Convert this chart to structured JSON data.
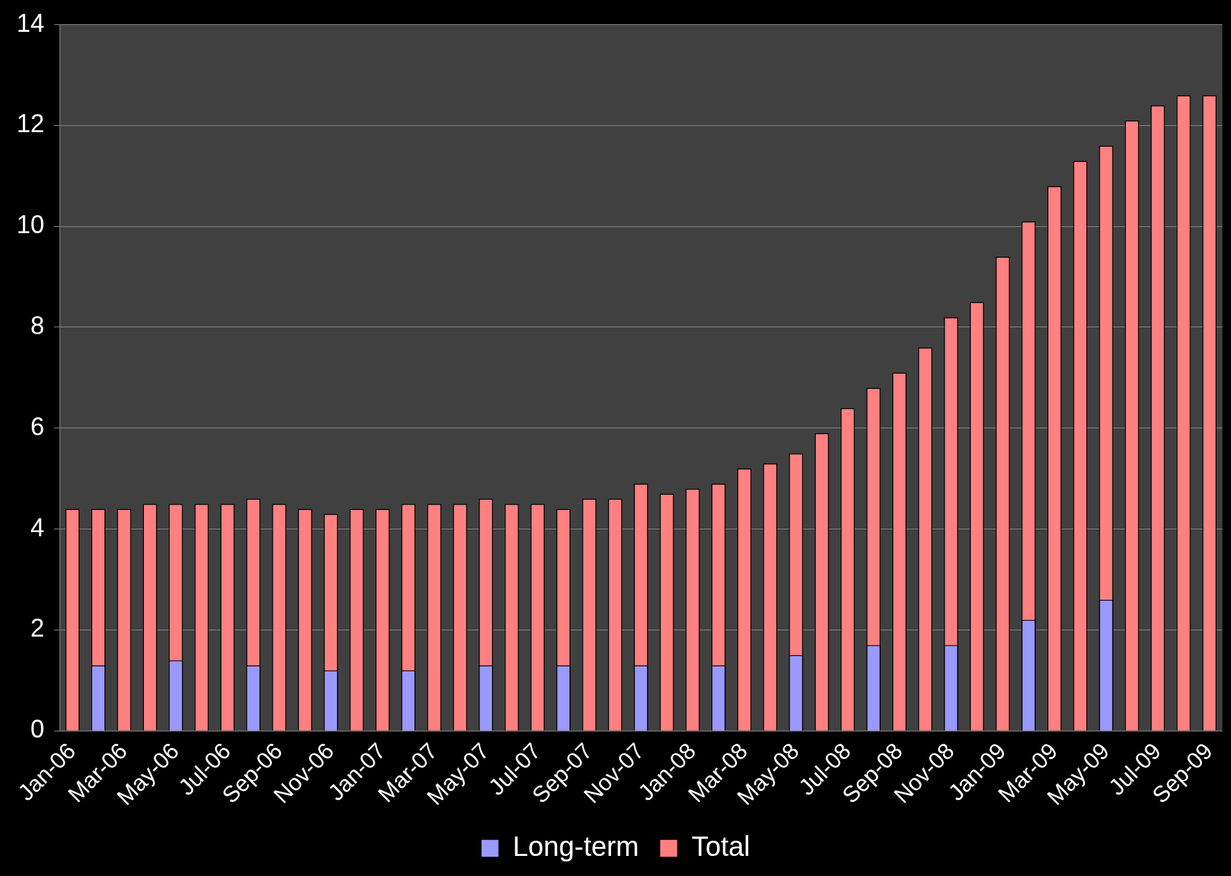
{
  "chart_data": {
    "type": "bar",
    "categories": [
      "Jan-06",
      null,
      "Mar-06",
      null,
      "May-06",
      null,
      "Jul-06",
      null,
      "Sep-06",
      null,
      "Nov-06",
      null,
      "Jan-07",
      null,
      "Mar-07",
      null,
      "May-07",
      null,
      "Jul-07",
      null,
      "Sep-07",
      null,
      "Nov-07",
      null,
      "Jan-08",
      null,
      "Mar-08",
      null,
      "May-08",
      null,
      "Jul-08",
      null,
      "Sep-08",
      null,
      "Nov-08",
      null,
      "Jan-09",
      null,
      "Mar-09",
      null,
      "May-09",
      null,
      "Jul-09",
      null,
      "Sep-09"
    ],
    "series": [
      {
        "name": "Long-term",
        "color": "#9999ff",
        "values": [
          null,
          1.3,
          null,
          null,
          1.4,
          null,
          null,
          1.3,
          null,
          null,
          1.2,
          null,
          null,
          1.2,
          null,
          null,
          1.3,
          null,
          null,
          1.3,
          null,
          null,
          1.3,
          null,
          null,
          1.3,
          null,
          null,
          1.5,
          null,
          null,
          1.7,
          null,
          null,
          1.7,
          null,
          null,
          2.2,
          null,
          null,
          2.6,
          null,
          null,
          null,
          null
        ]
      },
      {
        "name": "Total",
        "color": "#ff8080",
        "values": [
          4.4,
          4.4,
          4.4,
          4.5,
          4.5,
          4.5,
          4.5,
          4.6,
          4.5,
          4.4,
          4.3,
          4.4,
          4.4,
          4.5,
          4.5,
          4.5,
          4.6,
          4.5,
          4.5,
          4.4,
          4.6,
          4.6,
          4.9,
          4.7,
          4.8,
          4.9,
          5.2,
          5.3,
          5.5,
          5.9,
          6.4,
          6.8,
          7.1,
          7.6,
          8.2,
          8.5,
          9.4,
          10.1,
          10.8,
          11.3,
          11.6,
          12.1,
          12.4,
          12.6,
          12.6
        ]
      }
    ],
    "ylim": [
      0,
      14
    ],
    "yticks": [
      0,
      2,
      4,
      6,
      8,
      10,
      12,
      14
    ],
    "grid": "y",
    "legend": "bottom"
  }
}
